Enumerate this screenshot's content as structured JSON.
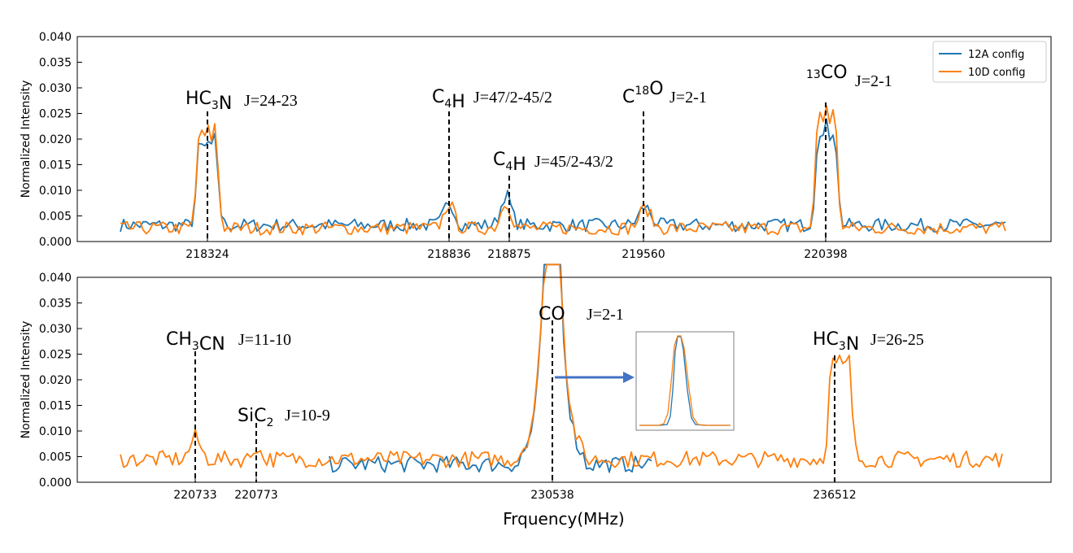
{
  "figure": {
    "xlabel": "Frquency(MHz)",
    "ylabel": "Normalized Intensity"
  },
  "colors": {
    "series_12A": "#1f77b4",
    "series_10D": "#ff7f0e",
    "arrow": "#4472c4",
    "inset_border": "#7f7f7f"
  },
  "legend": {
    "entries": [
      "12A config",
      "10D config"
    ],
    "placement": "top-right of upper panel"
  },
  "chart_data": [
    {
      "type": "line",
      "panel": "upper",
      "ylabel": "Normalized Intensity",
      "ylim": [
        0,
        0.04
      ],
      "yticks": [
        "0.000",
        "0.005",
        "0.010",
        "0.015",
        "0.020",
        "0.025",
        "0.030",
        "0.035",
        "0.040"
      ],
      "xticks": [
        "218324",
        "218836",
        "218875",
        "219560",
        "220398"
      ],
      "annotations": [
        {
          "species": "HC3N",
          "transition": "J=24-23",
          "x": "218324"
        },
        {
          "species": "C4H",
          "transition": "J=47/2-45/2",
          "x": "218836"
        },
        {
          "species": "C4H",
          "transition": "J=45/2-43/2",
          "x": "218875"
        },
        {
          "species": "C18O",
          "transition": "J=2-1",
          "x": "219560"
        },
        {
          "species": "13CO",
          "transition": "J=2-1",
          "x": "220398"
        }
      ],
      "lines": [
        {
          "species": "HC3N",
          "peak_12A": 0.02,
          "peak_10D": 0.0225
        },
        {
          "species": "C4H 47/2-45/2",
          "peak_12A": 0.0078,
          "peak_10D": 0.0075
        },
        {
          "species": "C4H 45/2-43/2",
          "peak_12A": 0.0092,
          "peak_10D": 0.0078
        },
        {
          "species": "C18O",
          "peak_12A": 0.0068,
          "peak_10D": 0.0065
        },
        {
          "species": "13CO",
          "peak_12A": 0.0228,
          "peak_10D": 0.0265
        }
      ],
      "baseline": {
        "12A": 0.0032,
        "10D": 0.0026
      },
      "series": [
        {
          "name": "12A config"
        },
        {
          "name": "10D config"
        }
      ]
    },
    {
      "type": "line",
      "panel": "lower",
      "ylabel": "Normalized Intensity",
      "ylim": [
        0,
        0.04
      ],
      "yticks": [
        "0.000",
        "0.005",
        "0.010",
        "0.015",
        "0.020",
        "0.025",
        "0.030",
        "0.035",
        "0.040"
      ],
      "xticks": [
        "220733",
        "220773",
        "230538",
        "236512"
      ],
      "annotations": [
        {
          "species": "CH3CN",
          "transition": "J=11-10",
          "x": "220733"
        },
        {
          "species": "SiC2",
          "transition": "J=10-9",
          "x": "220773"
        },
        {
          "species": "CO",
          "transition": "J=2-1",
          "x": "230538"
        },
        {
          "species": "HC3N",
          "transition": "J=26-25",
          "x": "236512"
        }
      ],
      "lines": [
        {
          "species": "CH3CN",
          "peak_10D": 0.0088
        },
        {
          "species": "SiC2",
          "peak_10D": 0.0072
        },
        {
          "species": "CO",
          "peak_12A": "off scale",
          "peak_10D": "off scale"
        },
        {
          "species": "HC3N",
          "peak_10D": 0.0243
        }
      ],
      "baseline": {
        "12A": 0.0035,
        "10D": 0.0045
      },
      "inset": {
        "description_shown": "CO line full profile, both configs overlapping"
      },
      "series": [
        {
          "name": "12A config"
        },
        {
          "name": "10D config"
        }
      ]
    }
  ]
}
